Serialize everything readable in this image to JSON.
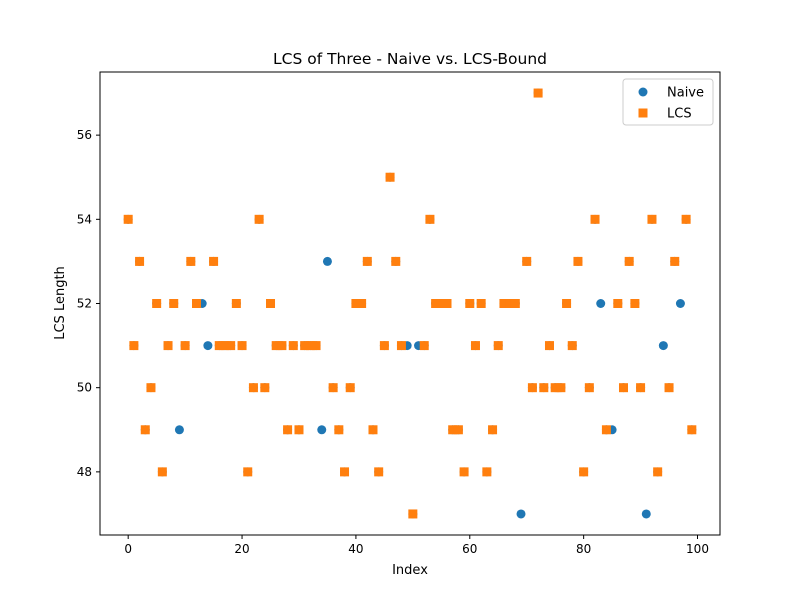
{
  "chart_data": {
    "type": "scatter",
    "title": "LCS of Three - Naive vs. LCS-Bound",
    "xlabel": "Index",
    "ylabel": "LCS Length",
    "xlim": [
      -4.95,
      103.95
    ],
    "ylim": [
      46.5,
      57.5
    ],
    "xticks": [
      0,
      20,
      40,
      60,
      80,
      100
    ],
    "yticks": [
      48,
      50,
      52,
      54,
      56
    ],
    "grid": false,
    "legend_position": "upper-right",
    "series": [
      {
        "name": "Naive",
        "marker": "circle",
        "color": "#1f77b4",
        "x": [
          0,
          1,
          2,
          3,
          4,
          5,
          6,
          7,
          8,
          9,
          10,
          11,
          12,
          13,
          14,
          15,
          16,
          17,
          18,
          19,
          20,
          21,
          22,
          23,
          24,
          25,
          26,
          27,
          28,
          29,
          30,
          31,
          32,
          33,
          34,
          35,
          36,
          37,
          38,
          39,
          40,
          41,
          42,
          43,
          44,
          45,
          46,
          47,
          48,
          49,
          50,
          51,
          52,
          53,
          54,
          55,
          56,
          57,
          58,
          59,
          60,
          61,
          62,
          63,
          64,
          65,
          66,
          67,
          68,
          69,
          70,
          71,
          72,
          73,
          74,
          75,
          76,
          77,
          78,
          79,
          80,
          81,
          82,
          83,
          84,
          85,
          86,
          87,
          88,
          89,
          90,
          91,
          92,
          93,
          94,
          95,
          96,
          97,
          98,
          99
        ],
        "y": [
          54,
          51,
          53,
          49,
          50,
          52,
          48,
          51,
          52,
          49,
          51,
          53,
          52,
          52,
          51,
          53,
          51,
          51,
          51,
          52,
          51,
          48,
          50,
          54,
          50,
          52,
          51,
          51,
          49,
          51,
          49,
          51,
          51,
          51,
          49,
          53,
          50,
          49,
          48,
          50,
          52,
          52,
          53,
          49,
          48,
          51,
          55,
          53,
          51,
          51,
          47,
          51,
          51,
          54,
          52,
          52,
          52,
          49,
          49,
          48,
          52,
          51,
          52,
          48,
          49,
          51,
          52,
          52,
          52,
          47,
          53,
          50,
          57,
          50,
          51,
          50,
          50,
          52,
          51,
          53,
          48,
          50,
          54,
          52,
          49,
          49,
          52,
          50,
          53,
          52,
          50,
          47,
          54,
          48,
          51,
          50,
          53,
          52,
          54,
          49
        ]
      },
      {
        "name": "LCS",
        "marker": "square",
        "color": "#ff7f0e",
        "x": [
          0,
          1,
          2,
          3,
          4,
          5,
          6,
          7,
          8,
          9,
          10,
          11,
          12,
          13,
          14,
          15,
          16,
          17,
          18,
          19,
          20,
          21,
          22,
          23,
          24,
          25,
          26,
          27,
          28,
          29,
          30,
          31,
          32,
          33,
          34,
          35,
          36,
          37,
          38,
          39,
          40,
          41,
          42,
          43,
          44,
          45,
          46,
          47,
          48,
          49,
          50,
          51,
          52,
          53,
          54,
          55,
          56,
          57,
          58,
          59,
          60,
          61,
          62,
          63,
          64,
          65,
          66,
          67,
          68,
          69,
          70,
          71,
          72,
          73,
          74,
          75,
          76,
          77,
          78,
          79,
          80,
          81,
          82,
          83,
          84,
          85,
          86,
          87,
          88,
          89,
          90,
          91,
          92,
          93,
          94,
          95,
          96,
          97,
          98,
          99
        ],
        "y": [
          54,
          51,
          53,
          49,
          50,
          52,
          48,
          51,
          52,
          null,
          51,
          53,
          52,
          null,
          null,
          53,
          51,
          51,
          51,
          52,
          51,
          48,
          50,
          54,
          50,
          52,
          51,
          51,
          49,
          51,
          49,
          51,
          51,
          51,
          null,
          null,
          50,
          49,
          48,
          50,
          52,
          52,
          53,
          49,
          48,
          51,
          55,
          53,
          51,
          null,
          47,
          null,
          51,
          54,
          52,
          52,
          52,
          49,
          49,
          48,
          52,
          51,
          52,
          48,
          49,
          51,
          52,
          52,
          52,
          null,
          53,
          50,
          57,
          50,
          51,
          50,
          50,
          52,
          51,
          53,
          48,
          50,
          54,
          null,
          49,
          null,
          52,
          50,
          53,
          52,
          50,
          null,
          54,
          48,
          null,
          50,
          53,
          null,
          54,
          49
        ]
      }
    ]
  }
}
